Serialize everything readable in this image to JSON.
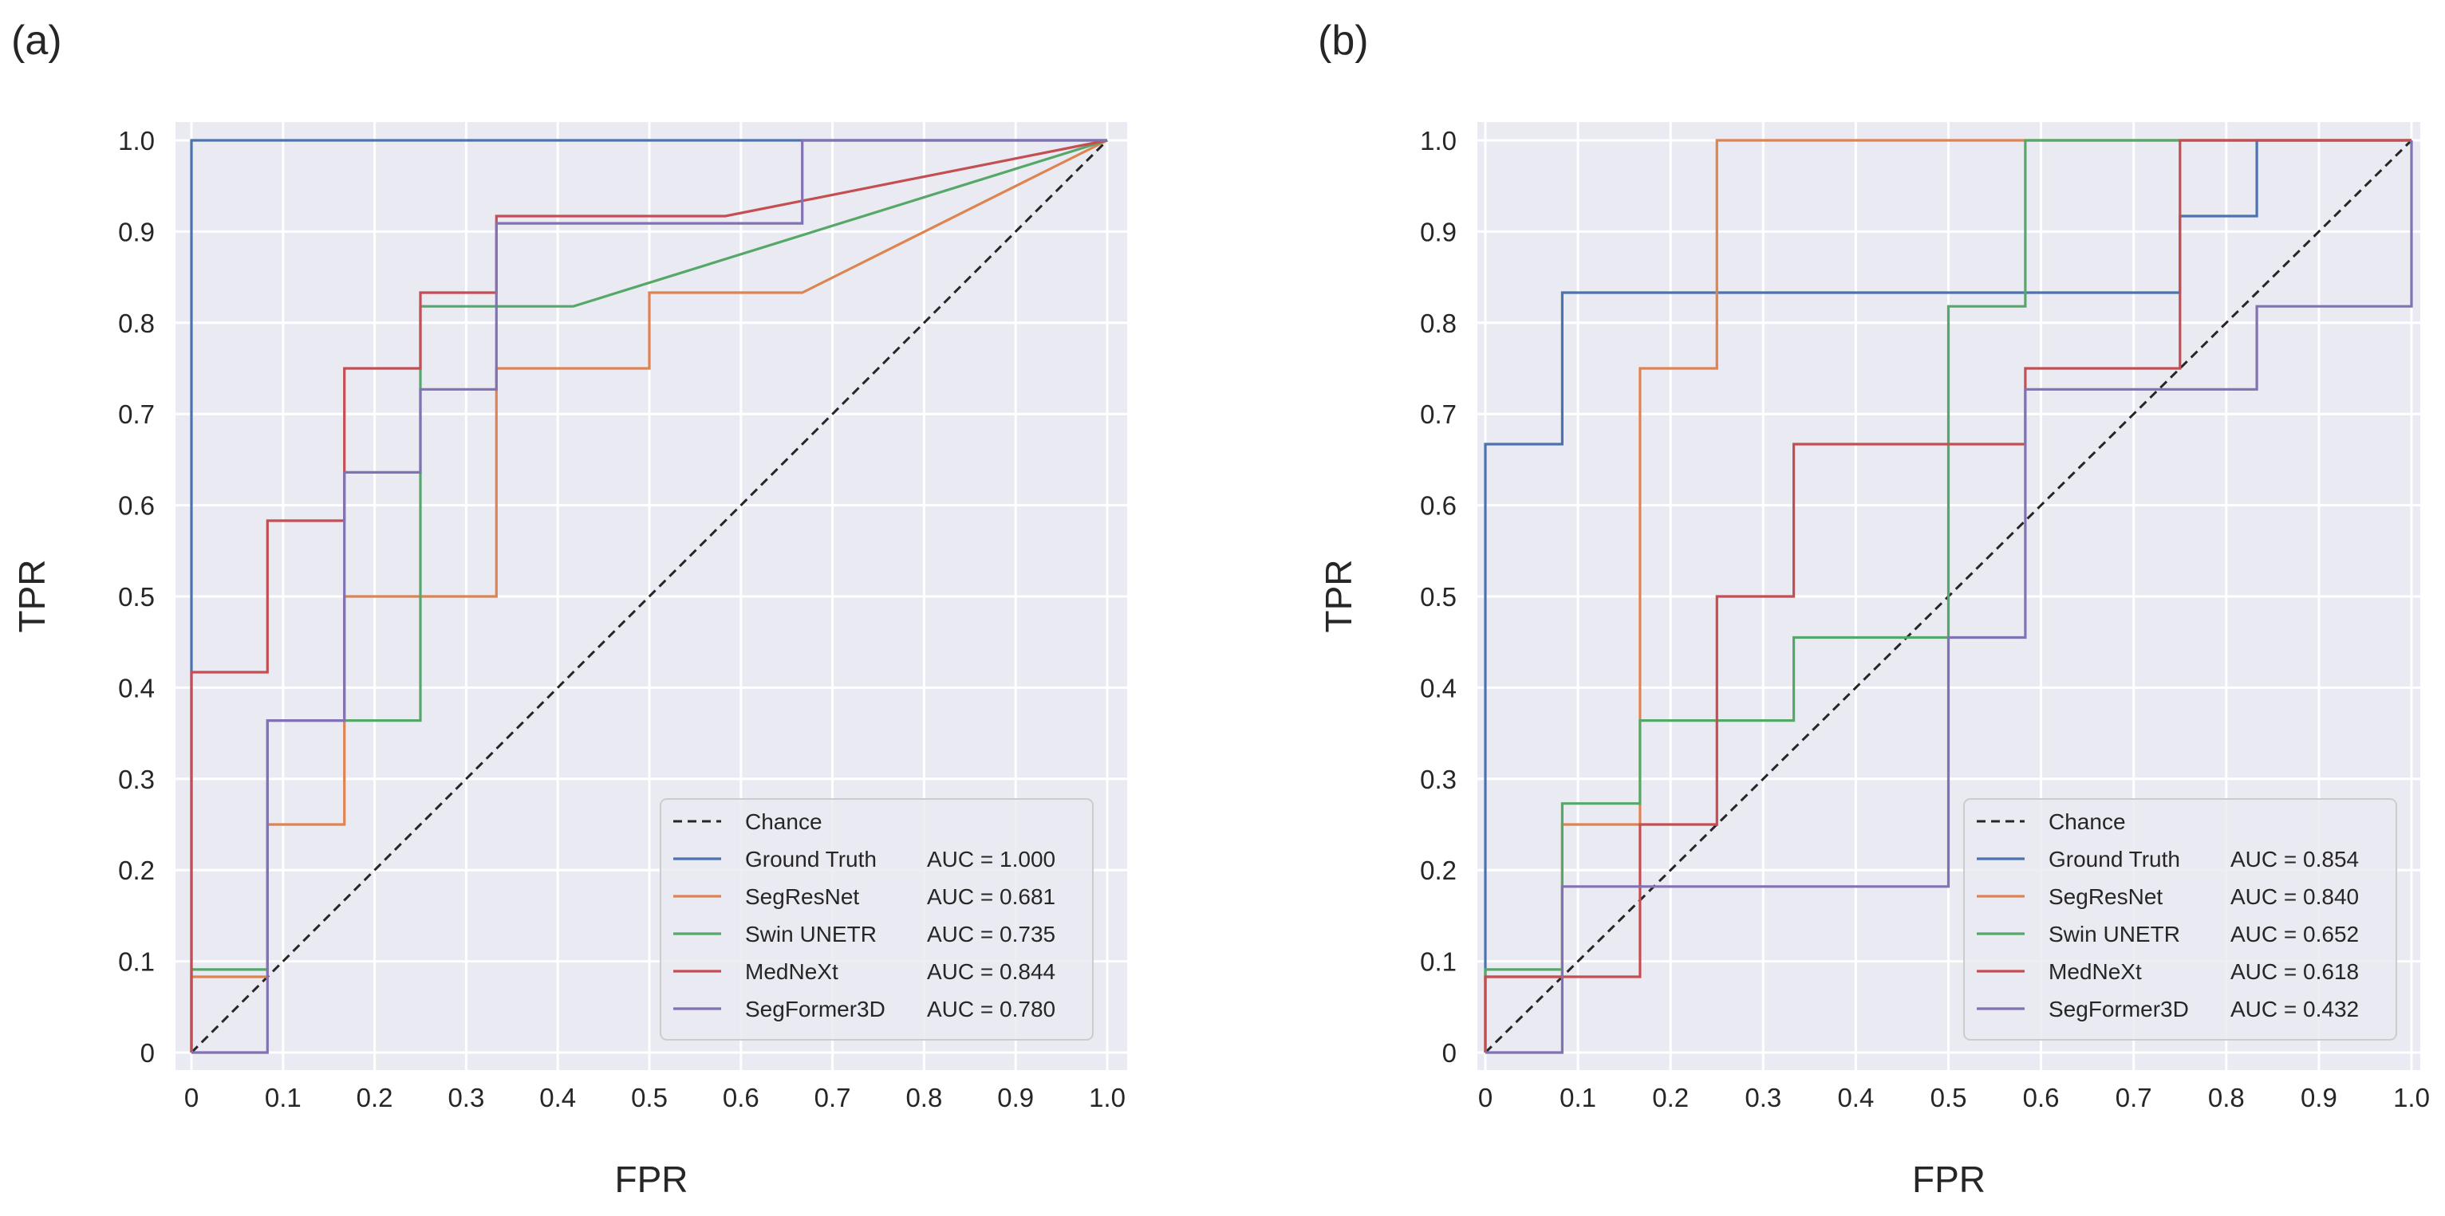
{
  "chart_data": [
    {
      "type": "line",
      "panel_label": "(a)",
      "xlabel": "FPR",
      "ylabel": "TPR",
      "xlim": [
        0,
        1
      ],
      "ylim": [
        0,
        1
      ],
      "x_ticks": [
        "0",
        "0.1",
        "0.2",
        "0.3",
        "0.4",
        "0.5",
        "0.6",
        "0.7",
        "0.8",
        "0.9",
        "1.0"
      ],
      "y_ticks": [
        "0",
        "0.1",
        "0.2",
        "0.3",
        "0.4",
        "0.5",
        "0.6",
        "0.7",
        "0.8",
        "0.9",
        "1.0"
      ],
      "grid": true,
      "legend_position": "lower-right",
      "chance": {
        "name": "Chance",
        "x": [
          0,
          1
        ],
        "y": [
          0,
          1
        ]
      },
      "series": [
        {
          "name": "Ground Truth",
          "auc": "AUC = 1.000",
          "color": "#4c72b0",
          "x": [
            0,
            0,
            1
          ],
          "y": [
            0,
            1,
            1
          ]
        },
        {
          "name": "SegResNet",
          "auc": "AUC = 0.681",
          "color": "#dd8452",
          "x": [
            0,
            0,
            0.083,
            0.083,
            0.167,
            0.167,
            0.333,
            0.333,
            0.5,
            0.5,
            0.667,
            1
          ],
          "y": [
            0,
            0.083,
            0.083,
            0.25,
            0.25,
            0.5,
            0.5,
            0.75,
            0.75,
            0.833,
            0.833,
            1
          ]
        },
        {
          "name": "Swin UNETR",
          "auc": "AUC = 0.735",
          "color": "#55a868",
          "x": [
            0,
            0,
            0.083,
            0.083,
            0.25,
            0.25,
            0.417,
            1
          ],
          "y": [
            0,
            0.091,
            0.091,
            0.364,
            0.364,
            0.818,
            0.818,
            1
          ]
        },
        {
          "name": "MedNeXt",
          "auc": "AUC = 0.844",
          "color": "#c44e52",
          "x": [
            0,
            0,
            0.083,
            0.083,
            0.167,
            0.167,
            0.25,
            0.25,
            0.333,
            0.333,
            0.583,
            1
          ],
          "y": [
            0,
            0.417,
            0.417,
            0.583,
            0.583,
            0.75,
            0.75,
            0.833,
            0.833,
            0.917,
            0.917,
            1
          ]
        },
        {
          "name": "SegFormer3D",
          "auc": "AUC = 0.780",
          "color": "#8172b3",
          "x": [
            0,
            0.083,
            0.083,
            0.167,
            0.167,
            0.25,
            0.25,
            0.333,
            0.333,
            0.667,
            0.667,
            1
          ],
          "y": [
            0,
            0,
            0.364,
            0.364,
            0.636,
            0.636,
            0.727,
            0.727,
            0.909,
            0.909,
            1,
            1
          ]
        }
      ]
    },
    {
      "type": "line",
      "panel_label": "(b)",
      "xlabel": "FPR",
      "ylabel": "TPR",
      "xlim": [
        0,
        1
      ],
      "ylim": [
        0,
        1
      ],
      "x_ticks": [
        "0",
        "0.1",
        "0.2",
        "0.3",
        "0.4",
        "0.5",
        "0.6",
        "0.7",
        "0.8",
        "0.9",
        "1.0"
      ],
      "y_ticks": [
        "0",
        "0.1",
        "0.2",
        "0.3",
        "0.4",
        "0.5",
        "0.6",
        "0.7",
        "0.8",
        "0.9",
        "1.0"
      ],
      "grid": true,
      "legend_position": "lower-right",
      "chance": {
        "name": "Chance",
        "x": [
          0,
          1
        ],
        "y": [
          0,
          1
        ]
      },
      "series": [
        {
          "name": "Ground Truth",
          "auc": "AUC = 0.854",
          "color": "#4c72b0",
          "x": [
            0,
            0,
            0.083,
            0.083,
            0.75,
            0.75,
            0.833,
            0.833,
            1
          ],
          "y": [
            0,
            0.667,
            0.667,
            0.833,
            0.833,
            0.917,
            0.917,
            1,
            1
          ]
        },
        {
          "name": "SegResNet",
          "auc": "AUC = 0.840",
          "color": "#dd8452",
          "x": [
            0,
            0,
            0.083,
            0.083,
            0.167,
            0.167,
            0.25,
            0.25,
            1
          ],
          "y": [
            0,
            0.083,
            0.083,
            0.25,
            0.25,
            0.75,
            0.75,
            1,
            1
          ]
        },
        {
          "name": "Swin UNETR",
          "auc": "AUC = 0.652",
          "color": "#55a868",
          "x": [
            0,
            0,
            0.083,
            0.083,
            0.167,
            0.167,
            0.333,
            0.333,
            0.5,
            0.5,
            0.583,
            0.583,
            1
          ],
          "y": [
            0,
            0.091,
            0.091,
            0.273,
            0.273,
            0.364,
            0.364,
            0.455,
            0.455,
            0.818,
            0.818,
            1,
            1
          ]
        },
        {
          "name": "MedNeXt",
          "auc": "AUC = 0.618",
          "color": "#c44e52",
          "x": [
            0,
            0,
            0.167,
            0.167,
            0.25,
            0.25,
            0.333,
            0.333,
            0.583,
            0.583,
            0.75,
            0.75,
            1
          ],
          "y": [
            0,
            0.083,
            0.083,
            0.25,
            0.25,
            0.5,
            0.5,
            0.667,
            0.667,
            0.75,
            0.75,
            1,
            1
          ]
        },
        {
          "name": "SegFormer3D",
          "auc": "AUC = 0.432",
          "color": "#8172b3",
          "x": [
            0,
            0.083,
            0.083,
            0.5,
            0.5,
            0.583,
            0.583,
            0.833,
            0.833,
            1,
            1
          ],
          "y": [
            0,
            0,
            0.182,
            0.182,
            0.455,
            0.455,
            0.727,
            0.727,
            0.818,
            0.818,
            1
          ]
        }
      ]
    }
  ]
}
